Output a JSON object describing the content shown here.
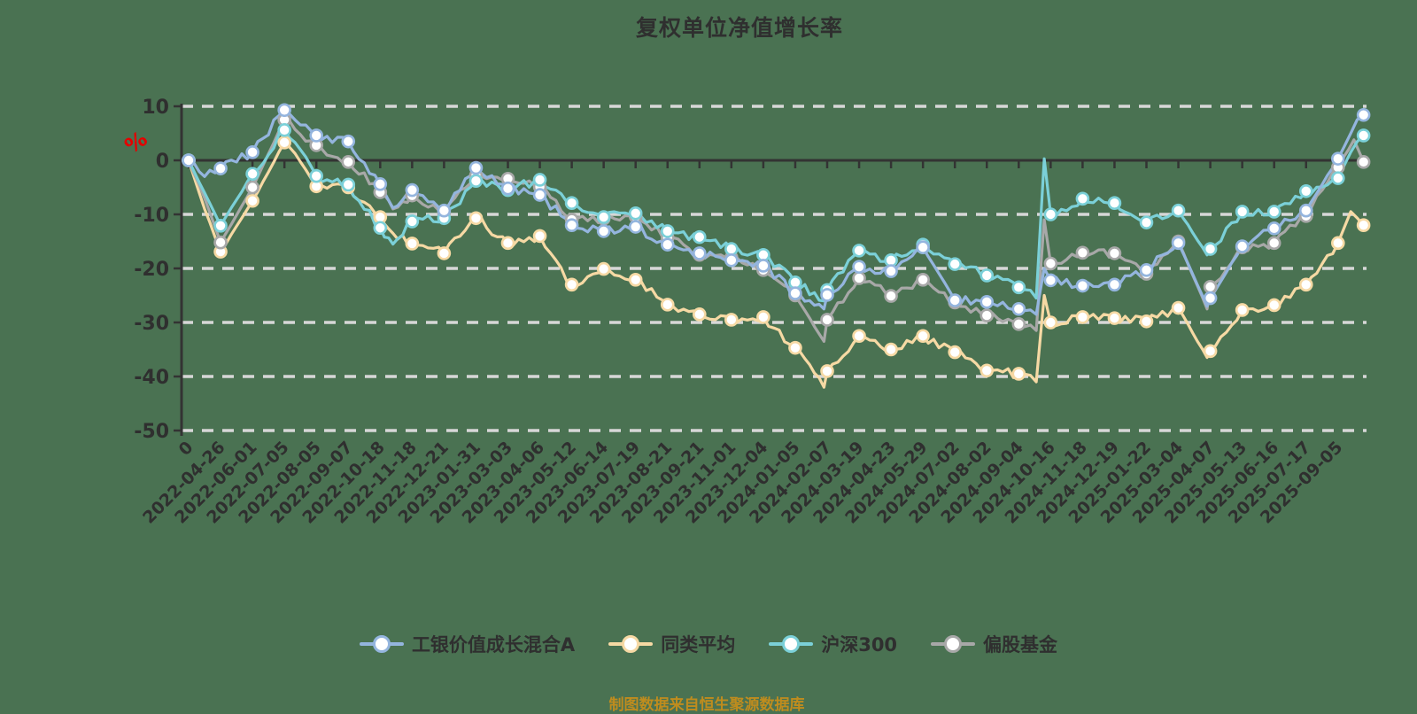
{
  "title": "复权单位净值增长率",
  "footer": "制图数据来自恒生聚源数据库",
  "colors": {
    "background": "#4a7252",
    "text": "#2f2f2f",
    "grid": "#d7d7d7",
    "axis": "#333333",
    "unit_label": "#e60000"
  },
  "y_axis": {
    "unit": "%",
    "ticks": [
      "10",
      "0",
      "-10",
      "-20",
      "-30",
      "-40",
      "-50"
    ]
  },
  "chart_data": {
    "type": "line",
    "title": "复权单位净值增长率",
    "ylabel": "%",
    "ylim": [
      -50,
      10
    ],
    "yticks": [
      10,
      0,
      -10,
      -20,
      -30,
      -40,
      -50
    ],
    "grid": "horizontal-dashed",
    "legend_position": "bottom",
    "categories": [
      "0",
      "2022-04-26",
      "2022-06-01",
      "2022-07-05",
      "2022-08-05",
      "2022-09-07",
      "2022-10-18",
      "2022-11-18",
      "2022-12-21",
      "2023-01-31",
      "2023-03-03",
      "2023-04-06",
      "2023-05-12",
      "2023-06-14",
      "2023-07-19",
      "2023-08-21",
      "2023-09-21",
      "2023-11-01",
      "2023-12-04",
      "2024-01-05",
      "2024-02-07",
      "2024-03-19",
      "2024-04-23",
      "2024-05-29",
      "2024-07-02",
      "2024-08-02",
      "2024-09-04",
      "2024-10-16",
      "2024-11-18",
      "2024-12-19",
      "2025-01-22",
      "2025-03-04",
      "2025-04-07",
      "2025-05-13",
      "2025-06-16",
      "2025-07-17",
      "2025-09-05"
    ],
    "series": [
      {
        "name": "工银价值成长混合A",
        "color": "#94b5de",
        "values": [
          0,
          -1.5,
          1.5,
          9.3,
          4.6,
          3.5,
          -4.4,
          -5.5,
          -9.3,
          -1.4,
          -5.2,
          -6.4,
          -12,
          -13.1,
          -12.3,
          -15.6,
          -17.2,
          -18.5,
          -19.5,
          -24.6,
          -24.9,
          -19.7,
          -20.5,
          -16.1,
          -25.9,
          -26.2,
          -27.5,
          -22.2,
          -23.2,
          -23,
          -20.3,
          -15.3,
          -25.5,
          -15.9,
          -12.6,
          -9.3,
          0.3
        ],
        "end_value": 8.4,
        "extra_points": [
          [
            0.5,
            -3
          ],
          [
            6.4,
            -8.8
          ],
          [
            19.9,
            -27.5
          ],
          [
            26.55,
            -28.5
          ],
          [
            26.8,
            -20
          ],
          [
            31.9,
            -27
          ],
          [
            36.4,
            5
          ]
        ]
      },
      {
        "name": "同类平均",
        "color": "#f6d9a4",
        "values": [
          0,
          -16.9,
          -7.5,
          3.3,
          -4.8,
          -5,
          -10.5,
          -15.4,
          -17.2,
          -10.7,
          -15.3,
          -14,
          -23,
          -20.1,
          -22.1,
          -26.7,
          -28.5,
          -29.5,
          -29,
          -34.7,
          -39,
          -32.5,
          -35,
          -32.5,
          -35.5,
          -38.9,
          -39.5,
          -30,
          -29,
          -29.2,
          -29.8,
          -27.3,
          -35.3,
          -27.7,
          -26.8,
          -23,
          -15.3
        ],
        "end_value": -12,
        "extra_points": [
          [
            0.5,
            -9
          ],
          [
            6.4,
            -13.5
          ],
          [
            19.9,
            -42
          ],
          [
            26.55,
            -41
          ],
          [
            26.8,
            -25
          ],
          [
            31.9,
            -36.5
          ],
          [
            36.4,
            -9.5
          ]
        ]
      },
      {
        "name": "沪深300",
        "color": "#7bd0d8",
        "values": [
          0,
          -12.1,
          -2.5,
          5.6,
          -2.9,
          -4.5,
          -12.5,
          -11.3,
          -10.7,
          -3.8,
          -5.5,
          -3.6,
          -7.9,
          -10.5,
          -9.8,
          -13.1,
          -14.2,
          -16.4,
          -17.5,
          -22.6,
          -24,
          -16.7,
          -18.5,
          -15.6,
          -19.2,
          -21.3,
          -23.5,
          -10,
          -7.1,
          -7.9,
          -11.5,
          -9.3,
          -16.4,
          -9.5,
          -9.5,
          -5.7,
          -3.3
        ],
        "end_value": 4.6,
        "extra_points": [
          [
            0.5,
            -6
          ],
          [
            6.4,
            -15.5
          ],
          [
            19.9,
            -26
          ],
          [
            26.55,
            -25.5
          ],
          [
            26.8,
            0.3
          ],
          [
            31.9,
            -17.5
          ],
          [
            36.4,
            1.5
          ]
        ]
      },
      {
        "name": "偏股基金",
        "color": "#a8a8a8",
        "values": [
          0,
          -15.2,
          -5,
          7.5,
          2.8,
          -0.3,
          -5.9,
          -6.5,
          -9.7,
          -2.8,
          -3.4,
          -4.9,
          -11,
          -10.8,
          -10.4,
          -14.3,
          -17.5,
          -18,
          -20.3,
          -25,
          -29.5,
          -21.8,
          -25.1,
          -22.1,
          -26.3,
          -28.7,
          -30.3,
          -19.1,
          -17.1,
          -17.2,
          -21,
          -15,
          -23.4,
          -16.1,
          -15.3,
          -10.3,
          -1.3
        ],
        "end_value": -0.3,
        "extra_points": [
          [
            0.5,
            -7
          ],
          [
            6.4,
            -9
          ],
          [
            19.9,
            -33.5
          ],
          [
            26.55,
            -31.5
          ],
          [
            26.8,
            -11
          ],
          [
            31.9,
            -27.5
          ],
          [
            36.5,
            3.8
          ]
        ]
      }
    ]
  }
}
